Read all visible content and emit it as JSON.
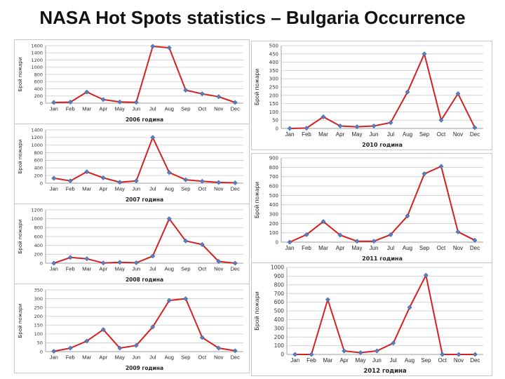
{
  "page": {
    "title": "NASA Hot Spots statistics – Bulgaria Occurrence"
  },
  "chart_data": [
    {
      "type": "line",
      "xlabel": "2006 година",
      "ylabel": "Брой пожари",
      "categories": [
        "Jan",
        "Feb",
        "Mar",
        "Apr",
        "May",
        "Jun",
        "Jul",
        "Aug",
        "Sep",
        "Oct",
        "Nov",
        "Dec"
      ],
      "values": [
        20,
        30,
        310,
        100,
        35,
        25,
        1580,
        1540,
        360,
        260,
        180,
        20
      ],
      "ylim": [
        0,
        1600
      ],
      "yticks": [
        0,
        200,
        400,
        600,
        800,
        1000,
        1200,
        1400,
        1600
      ],
      "grid": true,
      "color": "#d42020"
    },
    {
      "type": "line",
      "xlabel": "2007 година",
      "ylabel": "Брой пожари",
      "categories": [
        "Jan",
        "Feb",
        "Mar",
        "Apr",
        "May",
        "Jun",
        "Jul",
        "Aug",
        "Sep",
        "Oct",
        "Nov",
        "Dec"
      ],
      "values": [
        130,
        60,
        300,
        140,
        25,
        60,
        1200,
        280,
        90,
        50,
        20,
        10
      ],
      "ylim": [
        0,
        1400
      ],
      "yticks": [
        0,
        200,
        400,
        600,
        800,
        1000,
        1200,
        1400
      ],
      "grid": true,
      "color": "#d42020"
    },
    {
      "type": "line",
      "xlabel": "2008 година",
      "ylabel": "Брой пожари",
      "categories": [
        "Jan",
        "Feb",
        "Mar",
        "Apr",
        "May",
        "Jun",
        "Jul",
        "Aug",
        "Sep",
        "Oct",
        "Nov",
        "Dec"
      ],
      "values": [
        0,
        130,
        100,
        5,
        20,
        10,
        160,
        1000,
        500,
        420,
        40,
        0
      ],
      "ylim": [
        0,
        1200
      ],
      "yticks": [
        0,
        200,
        400,
        600,
        800,
        1000,
        1200
      ],
      "grid": true,
      "color": "#d42020"
    },
    {
      "type": "line",
      "xlabel": "2009 година",
      "ylabel": "Брой пожари",
      "categories": [
        "Jan",
        "Feb",
        "Mar",
        "Apr",
        "May",
        "Jun",
        "Jul",
        "Aug",
        "Sep",
        "Oct",
        "Nov",
        "Dec"
      ],
      "values": [
        2,
        20,
        60,
        125,
        20,
        35,
        140,
        290,
        300,
        80,
        20,
        5
      ],
      "ylim": [
        0,
        350
      ],
      "yticks": [
        0,
        50,
        100,
        150,
        200,
        250,
        300,
        350
      ],
      "grid": true,
      "color": "#d42020"
    },
    {
      "type": "line",
      "xlabel": "2010 година",
      "ylabel": "Брой пожари",
      "categories": [
        "Jan",
        "Feb",
        "Mar",
        "Apr",
        "May",
        "Jun",
        "Jul",
        "Aug",
        "Sep",
        "Oct",
        "Nov",
        "Dec"
      ],
      "values": [
        0,
        2,
        70,
        15,
        10,
        15,
        35,
        220,
        450,
        50,
        210,
        5
      ],
      "ylim": [
        0,
        500
      ],
      "yticks": [
        0,
        50,
        100,
        150,
        200,
        250,
        300,
        350,
        400,
        450,
        500
      ],
      "grid": true,
      "color": "#d42020"
    },
    {
      "type": "line",
      "xlabel": "2011 година",
      "ylabel": "Брой пожари",
      "categories": [
        "Jan",
        "Feb",
        "Mar",
        "Apr",
        "May",
        "Jun",
        "Jul",
        "Aug",
        "Sep",
        "Oct",
        "Nov",
        "Dec"
      ],
      "values": [
        0,
        80,
        220,
        75,
        10,
        10,
        80,
        280,
        730,
        810,
        110,
        20
      ],
      "ylim": [
        0,
        900
      ],
      "yticks": [
        0,
        100,
        200,
        300,
        400,
        500,
        600,
        700,
        800,
        900
      ],
      "grid": true,
      "color": "#d42020"
    },
    {
      "type": "line",
      "xlabel": "2012 година",
      "ylabel": "Брой пожари",
      "categories": [
        "Jan",
        "Feb",
        "Mar",
        "Apr",
        "May",
        "Jun",
        "Jul",
        "Aug",
        "Sep",
        "Oct",
        "Nov",
        "Dec"
      ],
      "values": [
        0,
        0,
        630,
        40,
        20,
        40,
        130,
        540,
        910,
        0,
        0,
        0
      ],
      "ylim": [
        0,
        1000
      ],
      "yticks": [
        0,
        100,
        200,
        300,
        400,
        500,
        600,
        700,
        800,
        900,
        1000
      ],
      "grid": true,
      "color": "#d42020"
    }
  ]
}
